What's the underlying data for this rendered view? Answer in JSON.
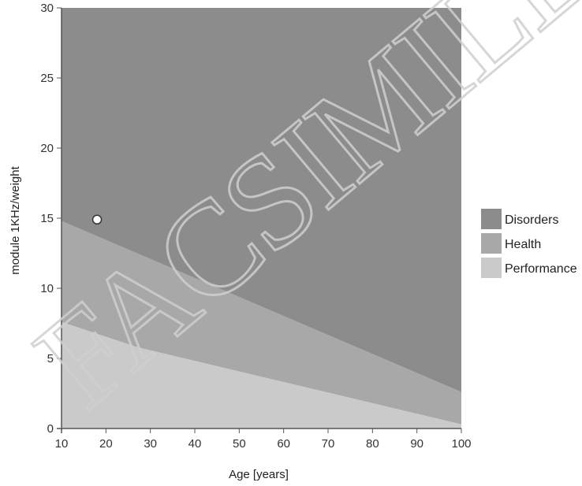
{
  "chart_data": {
    "type": "area",
    "xlabel": "Age [years]",
    "ylabel": "module 1KHz/weight",
    "xlim": [
      10,
      100
    ],
    "ylim": [
      0,
      30
    ],
    "x_ticks": [
      10,
      20,
      30,
      40,
      50,
      60,
      70,
      80,
      90,
      100
    ],
    "y_ticks": [
      0,
      5,
      10,
      15,
      20,
      25,
      30
    ],
    "grid": false,
    "legend_position": "right",
    "regions": [
      {
        "name": "Disorders",
        "color": "#8c8c8c",
        "lower_boundary": [
          [
            10,
            14.8
          ],
          [
            100,
            2.6
          ]
        ],
        "upper_boundary": [
          [
            10,
            30
          ],
          [
            100,
            30
          ]
        ]
      },
      {
        "name": "Health",
        "color": "#a8a8a8",
        "lower_boundary": [
          [
            10,
            7.6
          ],
          [
            27,
            5.8
          ],
          [
            100,
            0.3
          ]
        ],
        "upper_boundary": [
          [
            10,
            14.8
          ],
          [
            100,
            2.6
          ]
        ]
      },
      {
        "name": "Performance",
        "color": "#cacaca",
        "lower_boundary": [
          [
            10,
            0
          ],
          [
            100,
            0
          ]
        ],
        "upper_boundary": [
          [
            10,
            7.6
          ],
          [
            27,
            5.8
          ],
          [
            100,
            0.3
          ]
        ]
      }
    ],
    "points": [
      {
        "x": 18,
        "y": 14.9
      }
    ],
    "watermark": "FACSIMILE"
  }
}
